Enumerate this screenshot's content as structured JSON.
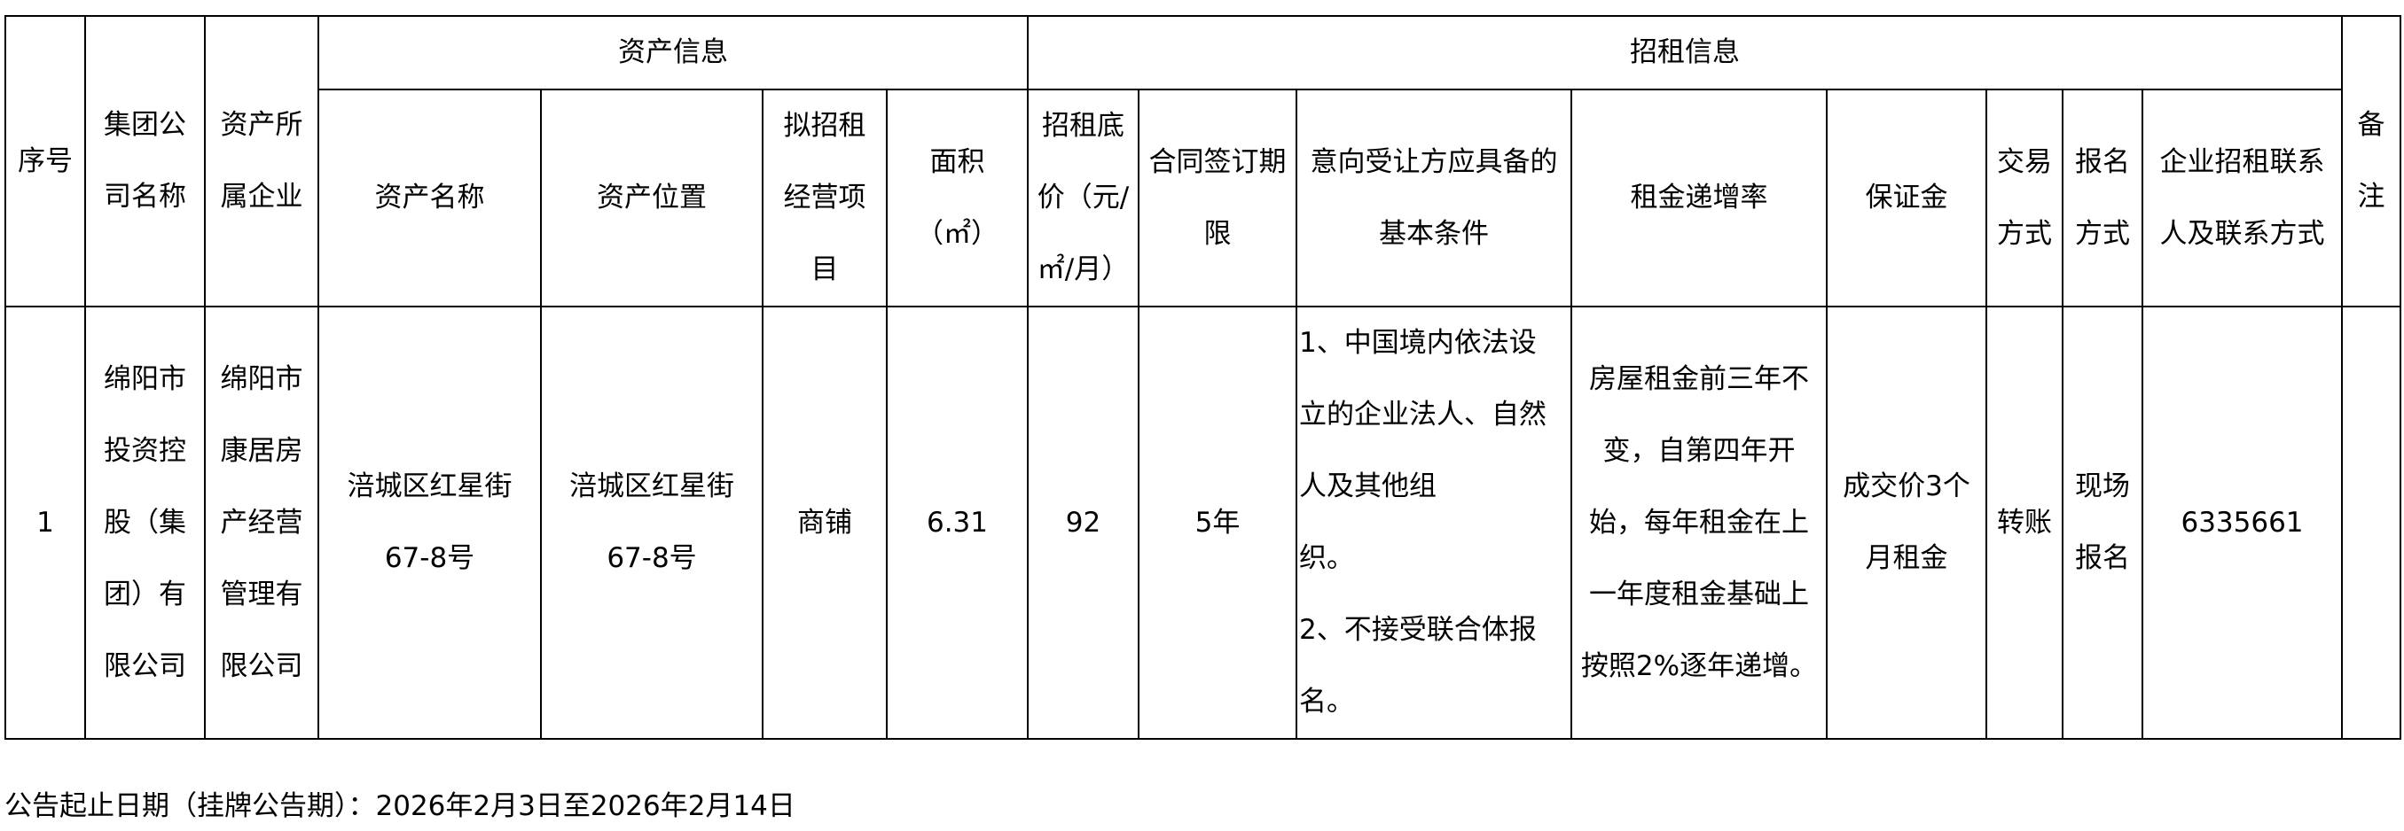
{
  "header": {
    "seq": "序号",
    "group": "集团公\n司名称",
    "owner": "资产所\n属企业",
    "asset_info": "资产信息",
    "rent_info": "招租信息",
    "remark": "备\n注",
    "asset_name": "资产名称",
    "asset_location": "资产位置",
    "business": "拟招租\n经营项\n目",
    "area": "面积\n（㎡）",
    "base_price": "招租底\n价（元/\n㎡/月）",
    "term": "合同签订期\n限",
    "conditions": "意向受让方应具备的\n基本条件",
    "increase": "租金递增率",
    "deposit": "保证金",
    "trade": "交易\n方式",
    "signup": "报名\n方式",
    "contact": "企业招租联系\n人及联系方式"
  },
  "rows": [
    {
      "seq": "1",
      "group": "绵阳市\n投资控\n股（集\n团）有\n限公司",
      "owner": "绵阳市\n康居房\n产经营\n管理有\n限公司",
      "asset_name": "涪城区红星街\n67-8号",
      "asset_location": "涪城区红星街\n67-8号",
      "business": "商铺",
      "area": "6.31",
      "base_price": "92",
      "term": "5年",
      "conditions": "1、中国境内依法设\n立的企业法人、自然\n人及其他组\n织。\n2、不接受联合体报\n名。",
      "increase": "房屋租金前三年不\n变，自第四年开\n始，每年租金在上\n一年度租金基础上\n按照2%逐年递增。",
      "deposit": "成交价3个\n月租金",
      "trade": "转账",
      "signup": "现场\n报名",
      "contact": "6335661",
      "remark": ""
    }
  ],
  "footer": "公告起止日期（挂牌公告期）：2026年2月3日至2026年2月14日"
}
